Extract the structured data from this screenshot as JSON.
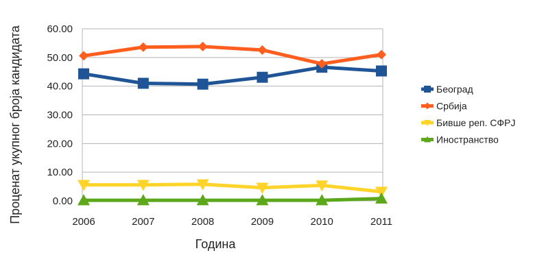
{
  "chart_data": {
    "type": "line",
    "title": "",
    "xlabel": "Година",
    "ylabel": "Проценат укупног броја кандидата",
    "x": [
      "2006",
      "2007",
      "2008",
      "2009",
      "2010",
      "2011"
    ],
    "yticks": [
      "0.00",
      "10.00",
      "20.00",
      "30.00",
      "40.00",
      "50.00",
      "60.00"
    ],
    "ylim": [
      0,
      60
    ],
    "grid": "horizontal",
    "legend_position": "right",
    "series": [
      {
        "name": "Београд",
        "color": "#1f5596",
        "marker": "square",
        "values": [
          44.3,
          41.0,
          40.7,
          43.1,
          46.6,
          45.3
        ]
      },
      {
        "name": "Србија",
        "color": "#ff5e1f",
        "marker": "diamond",
        "values": [
          50.6,
          53.6,
          53.8,
          52.6,
          47.8,
          51.0
        ]
      },
      {
        "name": "Бивше реп. СФРЈ",
        "color": "#ffd42a",
        "marker": "triangle-down",
        "values": [
          5.6,
          5.6,
          5.8,
          4.6,
          5.4,
          3.2
        ]
      },
      {
        "name": "Иностранство",
        "color": "#5da71a",
        "marker": "triangle-up",
        "values": [
          0.2,
          0.2,
          0.2,
          0.2,
          0.2,
          0.8
        ]
      }
    ]
  }
}
